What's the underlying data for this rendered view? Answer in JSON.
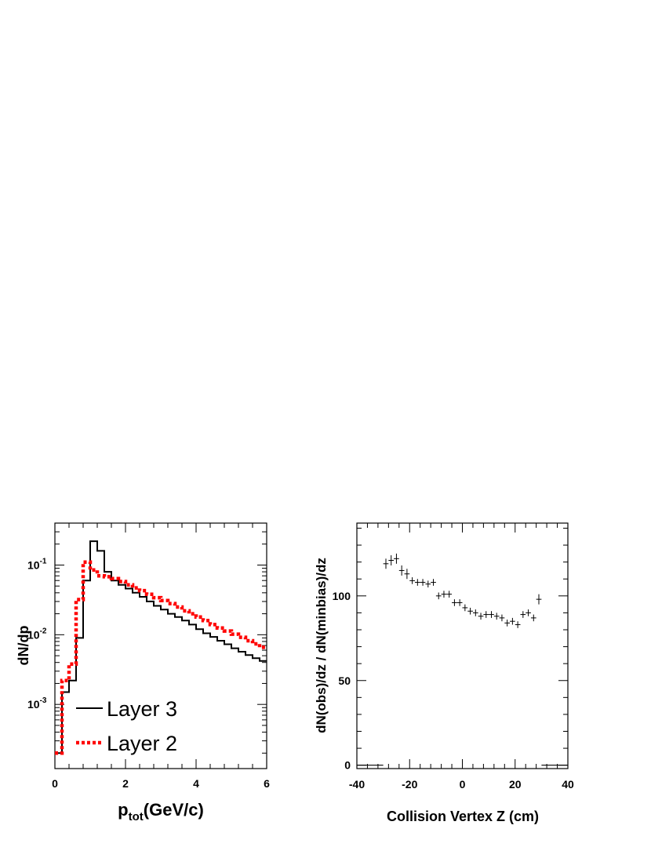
{
  "chart_data": [
    {
      "type": "line",
      "drawstyle": "step",
      "xlabel": "p",
      "xlabel_sub": "tot",
      "xlabel_units": "(GeV/c)",
      "ylabel": "dN/dp",
      "xlim": [
        0,
        6
      ],
      "ylim": [
        0.00012,
        0.4
      ],
      "yscale": "log",
      "grid": false,
      "legend_position": "bottom-left",
      "xticks": [
        0,
        2,
        4,
        6
      ],
      "xtick_labels": [
        "0",
        "2",
        "4",
        "6"
      ],
      "yticks": [
        0.001,
        0.01,
        0.1
      ],
      "ytick_labels": [
        {
          "base": "10",
          "exp": "-3"
        },
        {
          "base": "10",
          "exp": "-2"
        },
        {
          "base": "10",
          "exp": "-1"
        }
      ],
      "bin_edges": [
        0,
        0.2,
        0.4,
        0.6,
        0.8,
        1.0,
        1.2,
        1.4,
        1.6,
        1.8,
        2.0,
        2.2,
        2.4,
        2.6,
        2.8,
        3.0,
        3.2,
        3.4,
        3.6,
        3.8,
        4.0,
        4.2,
        4.4,
        4.6,
        4.8,
        5.0,
        5.2,
        5.4,
        5.6,
        5.8,
        6.0
      ],
      "series": [
        {
          "name": "Layer 3",
          "color": "#000000",
          "style": "solid",
          "values": [
            0.0002,
            0.0015,
            0.0022,
            0.009,
            0.06,
            0.22,
            0.16,
            0.08,
            0.06,
            0.052,
            0.046,
            0.04,
            0.035,
            0.03,
            0.026,
            0.023,
            0.02,
            0.018,
            0.016,
            0.014,
            0.012,
            0.0105,
            0.0093,
            0.0082,
            0.0073,
            0.0064,
            0.0057,
            0.0051,
            0.0046,
            0.0042
          ]
        },
        {
          "name": "Layer 2",
          "color": "#ff0000",
          "style": "dotted",
          "values": [
            0.0002,
            0.0022,
            0.0038,
            0.032,
            0.11,
            0.085,
            0.07,
            0.068,
            0.064,
            0.058,
            0.052,
            0.047,
            0.043,
            0.038,
            0.034,
            0.031,
            0.028,
            0.025,
            0.022,
            0.02,
            0.018,
            0.016,
            0.014,
            0.0125,
            0.0113,
            0.0102,
            0.0092,
            0.0082,
            0.0074,
            0.0066
          ]
        }
      ]
    },
    {
      "type": "scatter",
      "errorbars": true,
      "xlabel": "Collision Vertex Z (cm)",
      "ylabel": "dN(obs)/dz / dN(minbias)/dz",
      "xlim": [
        -40,
        40
      ],
      "ylim": [
        -2,
        143
      ],
      "yscale": "linear",
      "grid": false,
      "xticks": [
        -40,
        -20,
        0,
        20,
        40
      ],
      "xtick_labels": [
        "-40",
        "-20",
        "0",
        "20",
        "40"
      ],
      "yticks": [
        0,
        50,
        100
      ],
      "ytick_labels": [
        "0",
        "50",
        "100"
      ],
      "series": [
        {
          "x": [
            -29,
            -27,
            -25,
            -23,
            -21,
            -19,
            -17,
            -15,
            -13,
            -11,
            -9,
            -7,
            -5,
            -3,
            -1,
            1,
            3,
            5,
            7,
            9,
            11,
            13,
            15,
            17,
            19,
            21,
            23,
            25,
            27,
            29
          ],
          "y": [
            119,
            121,
            122,
            115,
            113,
            109,
            108,
            108,
            107,
            108,
            100,
            101,
            101,
            96,
            96,
            93,
            91,
            90,
            88,
            89,
            89,
            88,
            87,
            84,
            85,
            83,
            89,
            90,
            87,
            98
          ],
          "yerr": [
            3,
            3,
            3,
            3,
            3,
            2,
            2,
            2,
            2,
            2,
            2,
            2,
            2,
            2,
            2,
            2,
            2,
            2,
            2,
            2,
            2,
            2,
            2,
            2,
            2,
            2,
            2,
            2,
            2,
            3
          ],
          "outside_y": 0,
          "outside_ranges": [
            [
              -40,
              -30
            ],
            [
              30,
              40
            ]
          ]
        }
      ]
    }
  ]
}
